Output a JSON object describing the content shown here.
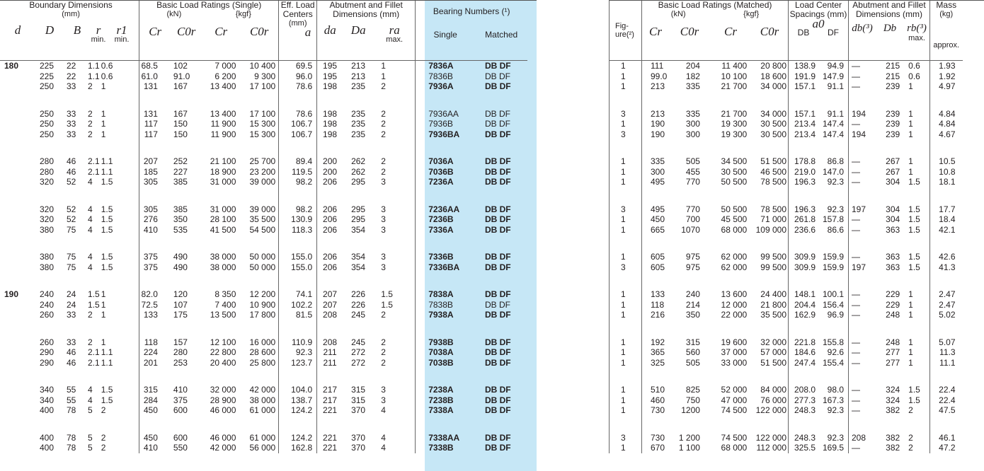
{
  "left": {
    "headers": {
      "boundary": "Boundary Dimensions",
      "boundary_unit": "(mm)",
      "load": "Basic Load Ratings (Single)",
      "kn": "(kN)",
      "kgf": "{kgf}",
      "eff": "Eff. Load Centers",
      "eff_unit": "(mm)",
      "abut": "Abutment and Fillet Dimensions (mm)",
      "bearing": "Bearing Numbers (¹)",
      "single": "Single",
      "matched": "Matched",
      "sym_d": "d",
      "sym_D": "D",
      "sym_B": "B",
      "sym_r": "r",
      "sym_r1": "r1",
      "min1": "min.",
      "min2": "min.",
      "sym_Cr": "Cr",
      "sym_C0r": "C0r",
      "sym_Cr2": "Cr",
      "sym_C0r2": "C0r",
      "sym_a": "a",
      "sym_da": "da",
      "sym_Da": "Da",
      "sym_ra": "ra",
      "max": "max."
    },
    "groups": [
      {
        "d": "180",
        "rows": [
          [
            "225",
            "22",
            "1.1",
            "0.6",
            "68.5",
            "102",
            "7 000",
            "10 400",
            "69.5",
            "195",
            "213",
            "1",
            "7836A",
            "DB DF"
          ],
          [
            "225",
            "22",
            "1.1",
            "0.6",
            "61.0",
            "91.0",
            "6 200",
            "9 300",
            "96.0",
            "195",
            "213",
            "1",
            "7836B",
            "DB DF"
          ],
          [
            "250",
            "33",
            "2",
            "1",
            "131",
            "167",
            "13 400",
            "17 100",
            "78.6",
            "198",
            "235",
            "2",
            "7936A",
            "DB DF"
          ]
        ]
      },
      {
        "d": "",
        "rows": [
          [
            "250",
            "33",
            "2",
            "1",
            "131",
            "167",
            "13 400",
            "17 100",
            "78.6",
            "198",
            "235",
            "2",
            "7936AA",
            "DB DF"
          ],
          [
            "250",
            "33",
            "2",
            "1",
            "117",
            "150",
            "11 900",
            "15 300",
            "106.7",
            "198",
            "235",
            "2",
            "7936B",
            "DB DF"
          ],
          [
            "250",
            "33",
            "2",
            "1",
            "117",
            "150",
            "11 900",
            "15 300",
            "106.7",
            "198",
            "235",
            "2",
            "7936BA",
            "DB DF"
          ]
        ]
      },
      {
        "d": "",
        "rows": [
          [
            "280",
            "46",
            "2.1",
            "1.1",
            "207",
            "252",
            "21 100",
            "25 700",
            "89.4",
            "200",
            "262",
            "2",
            "7036A",
            "DB DF"
          ],
          [
            "280",
            "46",
            "2.1",
            "1.1",
            "185",
            "227",
            "18 900",
            "23 200",
            "119.5",
            "200",
            "262",
            "2",
            "7036B",
            "DB DF"
          ],
          [
            "320",
            "52",
            "4",
            "1.5",
            "305",
            "385",
            "31 000",
            "39 000",
            "98.2",
            "206",
            "295",
            "3",
            "7236A",
            "DB DF"
          ]
        ]
      },
      {
        "d": "",
        "rows": [
          [
            "320",
            "52",
            "4",
            "1.5",
            "305",
            "385",
            "31 000",
            "39 000",
            "98.2",
            "206",
            "295",
            "3",
            "7236AA",
            "DB DF"
          ],
          [
            "320",
            "52",
            "4",
            "1.5",
            "276",
            "350",
            "28 100",
            "35 500",
            "130.9",
            "206",
            "295",
            "3",
            "7236B",
            "DB DF"
          ],
          [
            "380",
            "75",
            "4",
            "1.5",
            "410",
            "535",
            "41 500",
            "54 500",
            "118.3",
            "206",
            "354",
            "3",
            "7336A",
            "DB DF"
          ]
        ]
      },
      {
        "d": "",
        "rows": [
          [
            "380",
            "75",
            "4",
            "1.5",
            "375",
            "490",
            "38 000",
            "50 000",
            "155.0",
            "206",
            "354",
            "3",
            "7336B",
            "DB DF"
          ],
          [
            "380",
            "75",
            "4",
            "1.5",
            "375",
            "490",
            "38 000",
            "50 000",
            "155.0",
            "206",
            "354",
            "3",
            "7336BA",
            "DB DF"
          ]
        ]
      },
      {
        "d": "190",
        "rows": [
          [
            "240",
            "24",
            "1.5",
            "1",
            "82.0",
            "120",
            "8 350",
            "12 200",
            "74.1",
            "207",
            "226",
            "1.5",
            "7838A",
            "DB DF"
          ],
          [
            "240",
            "24",
            "1.5",
            "1",
            "72.5",
            "107",
            "7 400",
            "10 900",
            "102.2",
            "207",
            "226",
            "1.5",
            "7838B",
            "DB DF"
          ],
          [
            "260",
            "33",
            "2",
            "1",
            "133",
            "175",
            "13 500",
            "17 800",
            "81.5",
            "208",
            "245",
            "2",
            "7938A",
            "DB DF"
          ]
        ]
      },
      {
        "d": "",
        "rows": [
          [
            "260",
            "33",
            "2",
            "1",
            "118",
            "157",
            "12 100",
            "16 000",
            "110.9",
            "208",
            "245",
            "2",
            "7938B",
            "DB DF"
          ],
          [
            "290",
            "46",
            "2.1",
            "1.1",
            "224",
            "280",
            "22 800",
            "28 600",
            "92.3",
            "211",
            "272",
            "2",
            "7038A",
            "DB DF"
          ],
          [
            "290",
            "46",
            "2.1",
            "1.1",
            "201",
            "253",
            "20 400",
            "25 800",
            "123.7",
            "211",
            "272",
            "2",
            "7038B",
            "DB DF"
          ]
        ]
      },
      {
        "d": "",
        "rows": [
          [
            "340",
            "55",
            "4",
            "1.5",
            "315",
            "410",
            "32 000",
            "42 000",
            "104.0",
            "217",
            "315",
            "3",
            "7238A",
            "DB DF"
          ],
          [
            "340",
            "55",
            "4",
            "1.5",
            "284",
            "375",
            "28 900",
            "38 000",
            "138.7",
            "217",
            "315",
            "3",
            "7238B",
            "DB DF"
          ],
          [
            "400",
            "78",
            "5",
            "2",
            "450",
            "600",
            "46 000",
            "61 000",
            "124.2",
            "221",
            "370",
            "4",
            "7338A",
            "DB DF"
          ]
        ]
      },
      {
        "d": "",
        "rows": [
          [
            "400",
            "78",
            "5",
            "2",
            "450",
            "600",
            "46 000",
            "61 000",
            "124.2",
            "221",
            "370",
            "4",
            "7338AA",
            "DB DF"
          ],
          [
            "400",
            "78",
            "5",
            "2",
            "410",
            "550",
            "42 000",
            "56 000",
            "162.8",
            "221",
            "370",
            "4",
            "7338B",
            "DB DF"
          ]
        ]
      }
    ]
  },
  "right": {
    "headers": {
      "fig": "Fig-ure(²)",
      "load": "Basic Load Ratings (Matched)",
      "kn": "(kN)",
      "kgf": "{kgf}",
      "lc": "Load Center Spacings (mm)",
      "a0": "a0",
      "db": "DB",
      "df": "DF",
      "abut": "Abutment and Fillet Dimensions (mm)",
      "mass": "Mass",
      "mass_unit": "(kg)",
      "approx": "approx.",
      "sym_Cr": "Cr",
      "sym_C0r": "C0r",
      "sym_Cr2": "Cr",
      "sym_C0r2": "C0r",
      "sym_db": "db(³)",
      "sym_Db": "Db",
      "sym_rb": "rb(³)",
      "max": "max."
    },
    "groups": [
      {
        "rows": [
          [
            "1",
            "111",
            "204",
            "11 400",
            "20 800",
            "138.9",
            "94.9",
            "—",
            "215",
            "0.6",
            "1.93"
          ],
          [
            "1",
            "99.0",
            "182",
            "10 100",
            "18 600",
            "191.9",
            "147.9",
            "—",
            "215",
            "0.6",
            "1.92"
          ],
          [
            "1",
            "213",
            "335",
            "21 700",
            "34 000",
            "157.1",
            "91.1",
            "—",
            "239",
            "1",
            "4.97"
          ]
        ]
      },
      {
        "rows": [
          [
            "3",
            "213",
            "335",
            "21 700",
            "34 000",
            "157.1",
            "91.1",
            "194",
            "239",
            "1",
            "4.84"
          ],
          [
            "1",
            "190",
            "300",
            "19 300",
            "30 500",
            "213.4",
            "147.4",
            "—",
            "239",
            "1",
            "4.84"
          ],
          [
            "3",
            "190",
            "300",
            "19 300",
            "30 500",
            "213.4",
            "147.4",
            "194",
            "239",
            "1",
            "4.67"
          ]
        ]
      },
      {
        "rows": [
          [
            "1",
            "335",
            "505",
            "34 500",
            "51 500",
            "178.8",
            "86.8",
            "—",
            "267",
            "1",
            "10.5"
          ],
          [
            "1",
            "300",
            "455",
            "30 500",
            "46 500",
            "219.0",
            "147.0",
            "—",
            "267",
            "1",
            "10.8"
          ],
          [
            "1",
            "495",
            "770",
            "50 500",
            "78 500",
            "196.3",
            "92.3",
            "—",
            "304",
            "1.5",
            "18.1"
          ]
        ]
      },
      {
        "rows": [
          [
            "3",
            "495",
            "770",
            "50 500",
            "78 500",
            "196.3",
            "92.3",
            "197",
            "304",
            "1.5",
            "17.7"
          ],
          [
            "1",
            "450",
            "700",
            "45 500",
            "71 000",
            "261.8",
            "157.8",
            "—",
            "304",
            "1.5",
            "18.4"
          ],
          [
            "1",
            "665",
            "1070",
            "68 000",
            "109 000",
            "236.6",
            "86.6",
            "—",
            "363",
            "1.5",
            "42.1"
          ]
        ]
      },
      {
        "rows": [
          [
            "1",
            "605",
            "975",
            "62 000",
            "99 500",
            "309.9",
            "159.9",
            "—",
            "363",
            "1.5",
            "42.6"
          ],
          [
            "3",
            "605",
            "975",
            "62 000",
            "99 500",
            "309.9",
            "159.9",
            "197",
            "363",
            "1.5",
            "41.3"
          ]
        ]
      },
      {
        "rows": [
          [
            "1",
            "133",
            "240",
            "13 600",
            "24 400",
            "148.1",
            "100.1",
            "—",
            "229",
            "1",
            "2.47"
          ],
          [
            "1",
            "118",
            "214",
            "12 000",
            "21 800",
            "204.4",
            "156.4",
            "—",
            "229",
            "1",
            "2.47"
          ],
          [
            "1",
            "216",
            "350",
            "22 000",
            "35 500",
            "162.9",
            "96.9",
            "—",
            "248",
            "1",
            "5.02"
          ]
        ]
      },
      {
        "rows": [
          [
            "1",
            "192",
            "315",
            "19 600",
            "32 000",
            "221.8",
            "155.8",
            "—",
            "248",
            "1",
            "5.07"
          ],
          [
            "1",
            "365",
            "560",
            "37 000",
            "57 000",
            "184.6",
            "92.6",
            "—",
            "277",
            "1",
            "11.3"
          ],
          [
            "1",
            "325",
            "505",
            "33 000",
            "51 500",
            "247.4",
            "155.4",
            "—",
            "277",
            "1",
            "11.1"
          ]
        ]
      },
      {
        "rows": [
          [
            "1",
            "510",
            "825",
            "52 000",
            "84 000",
            "208.0",
            "98.0",
            "—",
            "324",
            "1.5",
            "22.4"
          ],
          [
            "1",
            "460",
            "750",
            "47 000",
            "76 000",
            "277.3",
            "167.3",
            "—",
            "324",
            "1.5",
            "22.4"
          ],
          [
            "1",
            "730",
            "1200",
            "74 500",
            "122 000",
            "248.3",
            "92.3",
            "—",
            "382",
            "2",
            "47.5"
          ]
        ]
      },
      {
        "rows": [
          [
            "3",
            "730",
            "1 200",
            "74 500",
            "122 000",
            "248.3",
            "92.3",
            "208",
            "382",
            "2",
            "46.1"
          ],
          [
            "1",
            "670",
            "1 100",
            "68 000",
            "112 000",
            "325.5",
            "169.5",
            "—",
            "382",
            "2",
            "47.2"
          ]
        ]
      }
    ]
  }
}
